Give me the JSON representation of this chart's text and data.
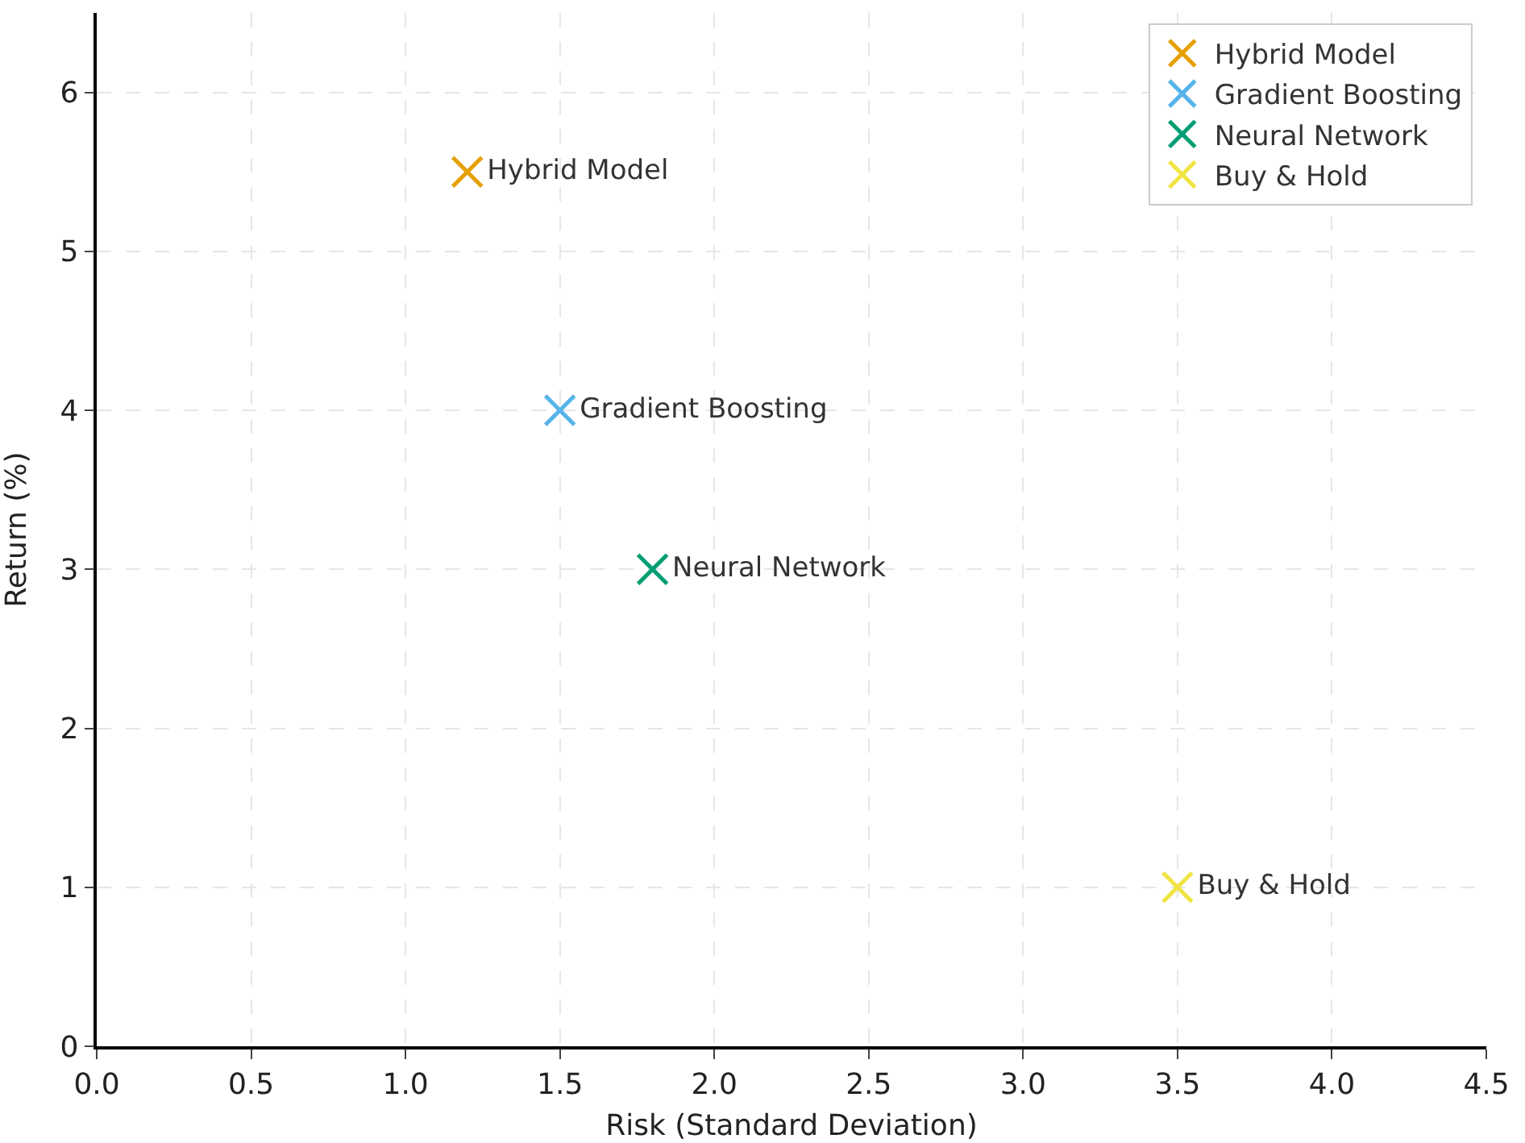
{
  "chart_data": {
    "type": "scatter",
    "xlabel": "Risk (Standard Deviation)",
    "ylabel": "Return (%)",
    "xlim": [
      0,
      4.5
    ],
    "xticks": [
      {
        "value": 0,
        "label": "0.0"
      },
      {
        "value": 0.5,
        "label": "0.5"
      },
      {
        "value": 1,
        "label": "1.0"
      },
      {
        "value": 1.5,
        "label": "1.5"
      },
      {
        "value": 2,
        "label": "2.0"
      },
      {
        "value": 2.5,
        "label": "2.5"
      },
      {
        "value": 3,
        "label": "3.0"
      },
      {
        "value": 3.5,
        "label": "3.5"
      },
      {
        "value": 4,
        "label": "4.0"
      },
      {
        "value": 4.5,
        "label": "4.5"
      }
    ],
    "ylim": [
      0,
      6.5
    ],
    "yticks": [
      0,
      1,
      2,
      3,
      4,
      5,
      6
    ],
    "grid": true,
    "legend": "top right",
    "marker": "cross",
    "series": [
      {
        "name": "Hybrid Model",
        "color": "#e69f00",
        "x": [
          1.2
        ],
        "values": [
          5.5
        ]
      },
      {
        "name": "Gradient Boosting",
        "color": "#56b4e9",
        "x": [
          1.5
        ],
        "values": [
          4
        ]
      },
      {
        "name": "Neural Network",
        "color": "#009e73",
        "x": [
          1.8
        ],
        "values": [
          3
        ]
      },
      {
        "name": "Buy & Hold",
        "color": "#f0e442",
        "x": [
          3.5
        ],
        "values": [
          1
        ]
      }
    ]
  }
}
